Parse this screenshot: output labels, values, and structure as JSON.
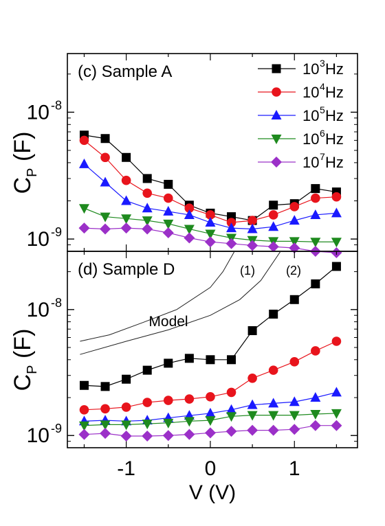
{
  "chart_data": [
    {
      "panel_label": "(c) Sample A",
      "type": "line",
      "yscale": "log",
      "ylabel_main": "C",
      "ylabel_sub": "P",
      "ylabel_unit": " (F)",
      "xlim": [
        -1.7,
        1.75
      ],
      "ylim": [
        8e-10,
        2.9e-08
      ],
      "y_ticks": [
        {
          "value": 1e-09,
          "mantissa": "10",
          "exponent": "-9"
        },
        {
          "value": 1e-08,
          "mantissa": "10",
          "exponent": "-8"
        }
      ],
      "legend_position": "top-right",
      "x": [
        -1.5,
        -1.25,
        -1.0,
        -0.75,
        -0.5,
        -0.25,
        0.0,
        0.25,
        0.5,
        0.75,
        1.0,
        1.25,
        1.5
      ],
      "series": [
        {
          "base": "10",
          "exp": "3",
          "unit": " Hz",
          "color": "#000000",
          "marker": "square",
          "values": [
            6.6e-09,
            6.2e-09,
            4.4e-09,
            3e-09,
            2.7e-09,
            1.85e-09,
            1.6e-09,
            1.5e-09,
            1.4e-09,
            1.85e-09,
            1.9e-09,
            2.5e-09,
            2.35e-09
          ]
        },
        {
          "base": "10",
          "exp": "4",
          "unit": " Hz",
          "color": "#e8141c",
          "marker": "circle",
          "values": [
            6e-09,
            4.4e-09,
            2.9e-09,
            2.3e-09,
            2.1e-09,
            1.75e-09,
            1.55e-09,
            1.35e-09,
            1.4e-09,
            1.55e-09,
            1.8e-09,
            2.1e-09,
            2.15e-09
          ]
        },
        {
          "base": "10",
          "exp": "5",
          "unit": " Hz",
          "color": "#1a1aff",
          "marker": "triangle-up",
          "values": [
            3.9e-09,
            2.8e-09,
            2e-09,
            1.75e-09,
            1.65e-09,
            1.55e-09,
            1.35e-09,
            1.22e-09,
            1.2e-09,
            1.25e-09,
            1.4e-09,
            1.55e-09,
            1.6e-09
          ]
        },
        {
          "base": "10",
          "exp": "6",
          "unit": " Hz",
          "color": "#1e8a1e",
          "marker": "triangle-down",
          "values": [
            1.75e-09,
            1.5e-09,
            1.45e-09,
            1.4e-09,
            1.32e-09,
            1.2e-09,
            1.1e-09,
            1.02e-09,
            9.8e-10,
            9.6e-10,
            9.6e-10,
            9.5e-10,
            9.5e-10
          ]
        },
        {
          "base": "10",
          "exp": "7",
          "unit": " Hz",
          "color": "#9b30c8",
          "marker": "diamond",
          "values": [
            1.22e-09,
            1.2e-09,
            1.22e-09,
            1.2e-09,
            1.12e-09,
            1.02e-09,
            9.5e-10,
            9.2e-10,
            8.9e-10,
            8.7e-10,
            8.5e-10,
            8e-10,
            7.8e-10
          ]
        }
      ]
    },
    {
      "panel_label": "(d) Sample D",
      "type": "line",
      "yscale": "log",
      "ylabel_main": "C",
      "ylabel_sub": "P",
      "ylabel_unit": " (F)",
      "xlabel": "V (V)",
      "xlim": [
        -1.7,
        1.75
      ],
      "ylim": [
        8e-10,
        2.9e-08
      ],
      "x_ticks": [
        {
          "value": -1,
          "label": "-1"
        },
        {
          "value": 0,
          "label": "0"
        },
        {
          "value": 1,
          "label": "1"
        }
      ],
      "y_ticks": [
        {
          "value": 1e-09,
          "mantissa": "10",
          "exponent": "-9"
        },
        {
          "value": 1e-08,
          "mantissa": "10",
          "exponent": "-8"
        }
      ],
      "x": [
        -1.5,
        -1.25,
        -1.0,
        -0.75,
        -0.5,
        -0.25,
        0.0,
        0.25,
        0.5,
        0.75,
        1.0,
        1.25,
        1.5
      ],
      "series": [
        {
          "color": "#000000",
          "marker": "square",
          "values": [
            2.5e-09,
            2.45e-09,
            2.8e-09,
            3.3e-09,
            3.75e-09,
            4.1e-09,
            4e-09,
            4e-09,
            6.8e-09,
            9.2e-09,
            1.2e-08,
            1.6e-08,
            2.2e-08
          ]
        },
        {
          "color": "#e8141c",
          "marker": "circle",
          "values": [
            1.6e-09,
            1.63e-09,
            1.68e-09,
            1.83e-09,
            1.9e-09,
            1.95e-09,
            2.03e-09,
            2.2e-09,
            2.85e-09,
            3.3e-09,
            3.85e-09,
            4.7e-09,
            5.6e-09
          ]
        },
        {
          "color": "#1a1aff",
          "marker": "triangle-up",
          "values": [
            1.3e-09,
            1.32e-09,
            1.3e-09,
            1.32e-09,
            1.38e-09,
            1.44e-09,
            1.5e-09,
            1.6e-09,
            1.75e-09,
            1.8e-09,
            1.85e-09,
            2e-09,
            2.2e-09
          ]
        },
        {
          "color": "#1e8a1e",
          "marker": "triangle-down",
          "values": [
            1.2e-09,
            1.22e-09,
            1.22e-09,
            1.24e-09,
            1.26e-09,
            1.3e-09,
            1.32e-09,
            1.42e-09,
            1.45e-09,
            1.45e-09,
            1.45e-09,
            1.48e-09,
            1.5e-09
          ]
        },
        {
          "color": "#9b30c8",
          "marker": "diamond",
          "values": [
            1.02e-09,
            1.04e-09,
            9.9e-10,
            9.9e-10,
            1e-09,
            1.02e-09,
            1.05e-09,
            1.08e-09,
            1.1e-09,
            1.1e-09,
            1.12e-09,
            1.2e-09,
            1.2e-09
          ]
        }
      ],
      "model_label": "Model",
      "model_curves": [
        {
          "label": "(1)",
          "x": [
            -1.55,
            -1.2,
            -0.8,
            -0.4,
            0.0,
            0.15,
            0.3
          ],
          "values": [
            5.6e-09,
            6.3e-09,
            7.9e-09,
            1e-08,
            1.5e-08,
            2e-08,
            3e-08
          ]
        },
        {
          "label": "(2)",
          "x": [
            -1.55,
            -1.0,
            -0.5,
            0.0,
            0.35,
            0.6,
            0.85
          ],
          "values": [
            4.4e-09,
            5.6e-09,
            6.9e-09,
            9e-09,
            1.2e-08,
            1.7e-08,
            3e-08
          ]
        }
      ]
    }
  ]
}
